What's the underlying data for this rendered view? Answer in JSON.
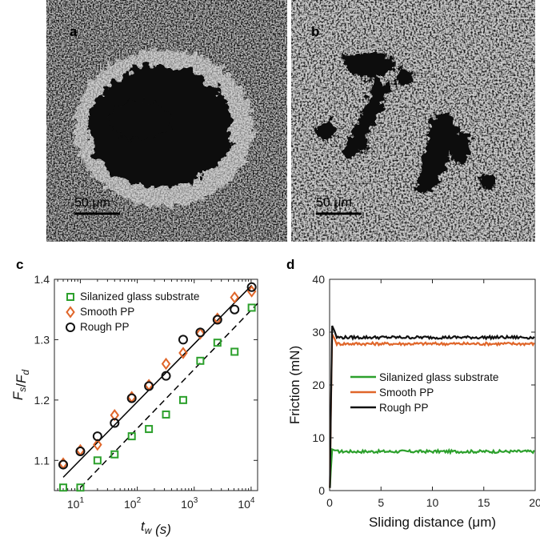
{
  "panels": {
    "a": {
      "letter": "a",
      "scale_bar": "50 μm"
    },
    "b": {
      "letter": "b",
      "scale_bar": "50 μm"
    }
  },
  "chart_data": [
    {
      "panel": "c",
      "type": "scatter",
      "xlabel": "t_w (s)",
      "ylabel": "F_s/F_d",
      "xscale": "log",
      "xlim": [
        3.5,
        13000
      ],
      "ylim": [
        1.05,
        1.4
      ],
      "xticks": [
        10,
        100,
        1000,
        10000
      ],
      "xtick_labels": [
        "10^1",
        "10^2",
        "10^3",
        "10^4"
      ],
      "yticks": [
        1.1,
        1.2,
        1.3,
        1.4
      ],
      "ytick_labels": [
        "1.1",
        "1.2",
        "1.3",
        "1.4"
      ],
      "legend_position": "top-left",
      "series": [
        {
          "name": "Silanized glass substrate",
          "marker": "square",
          "color": "#2ca02c",
          "x": [
            5,
            10,
            20,
            40,
            80,
            160,
            320,
            640,
            1280,
            2560,
            5120,
            10240
          ],
          "y": [
            1.055,
            1.055,
            1.1,
            1.11,
            1.14,
            1.152,
            1.176,
            1.2,
            1.265,
            1.295,
            1.28,
            1.353
          ],
          "fit": {
            "style": "dashed",
            "x": [
              10,
              13000
            ],
            "y": [
              1.055,
              1.36
            ]
          }
        },
        {
          "name": "Smooth PP",
          "marker": "diamond",
          "color": "#e0662a",
          "x": [
            5,
            10,
            20,
            40,
            80,
            160,
            320,
            640,
            1280,
            2560,
            5120,
            10240
          ],
          "y": [
            1.095,
            1.117,
            1.126,
            1.175,
            1.205,
            1.225,
            1.26,
            1.278,
            1.31,
            1.335,
            1.37,
            1.38
          ],
          "fit": {
            "style": "solid",
            "x": [
              5,
              10240
            ],
            "y": [
              1.072,
              1.39
            ]
          }
        },
        {
          "name": "Rough PP",
          "marker": "circle",
          "color": "#111111",
          "x": [
            5,
            10,
            20,
            40,
            80,
            160,
            320,
            640,
            1280,
            2560,
            5120,
            10240
          ],
          "y": [
            1.093,
            1.115,
            1.14,
            1.162,
            1.203,
            1.223,
            1.24,
            1.3,
            1.312,
            1.333,
            1.35,
            1.387
          ]
        }
      ]
    },
    {
      "panel": "d",
      "type": "line",
      "xlabel": "Sliding distance (μm)",
      "ylabel": "Friction (mN)",
      "xlim": [
        0,
        20
      ],
      "ylim": [
        0,
        40
      ],
      "xticks": [
        0,
        5,
        10,
        15,
        20
      ],
      "yticks": [
        0,
        10,
        20,
        30,
        40
      ],
      "legend_position": "center-right",
      "series": [
        {
          "name": "Silanized glass substrate",
          "color": "#2ca02c",
          "plateau": 7.4,
          "peak": 7.8
        },
        {
          "name": "Smooth PP",
          "color": "#e0662a",
          "plateau": 27.8,
          "peak": 29.6
        },
        {
          "name": "Rough PP",
          "color": "#111111",
          "plateau": 29.0,
          "peak": 31.2
        }
      ]
    }
  ]
}
